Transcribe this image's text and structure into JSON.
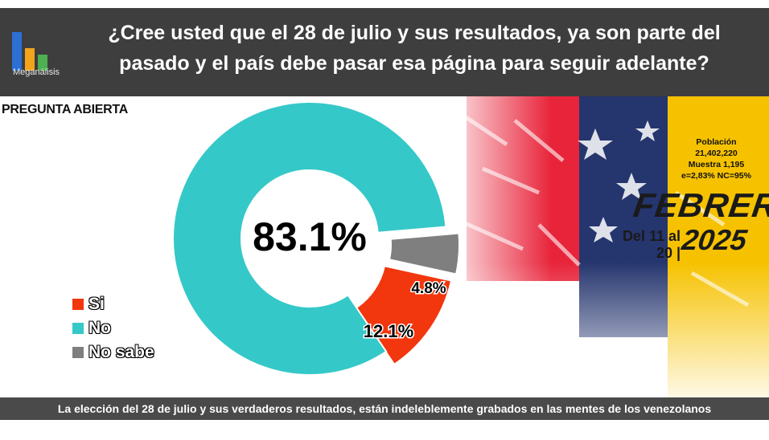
{
  "header": {
    "logo_text": "Meganálisis",
    "question_line1": "¿Cree usted que el 28 de julio y sus resultados, ya son parte del",
    "question_line2": "pasado y el país debe pasar esa página para seguir adelante?"
  },
  "subtitle": "PREGUNTA ABIERTA",
  "info": {
    "line1": "Población",
    "line2": "21,402,220",
    "line3": "Muestra 1,195",
    "line4": "e=2,83%  NC=95%"
  },
  "date": {
    "month": "FEBRERO",
    "range": "Del 11 al 20 |",
    "year": "2025"
  },
  "footer": "La elección del 28 de julio y sus verdaderos resultados, están indeleblemente grabados en las mentes de los venezolanos",
  "colors": {
    "si": "#f2360d",
    "no": "#35c8c8",
    "nosabe": "#7f7f7f",
    "header_bg": "#3e3e3e"
  },
  "chart_data": {
    "type": "pie",
    "donut": true,
    "title": "¿Cree usted que el 28 de julio y sus resultados, ya son parte del pasado y el país debe pasar esa página para seguir adelante?",
    "legend_position": "left",
    "categories": [
      "Si",
      "No",
      "No sabe"
    ],
    "values": [
      12.1,
      83.1,
      4.8
    ],
    "labels": [
      "12.1%",
      "83.1%",
      "4.8%"
    ]
  }
}
